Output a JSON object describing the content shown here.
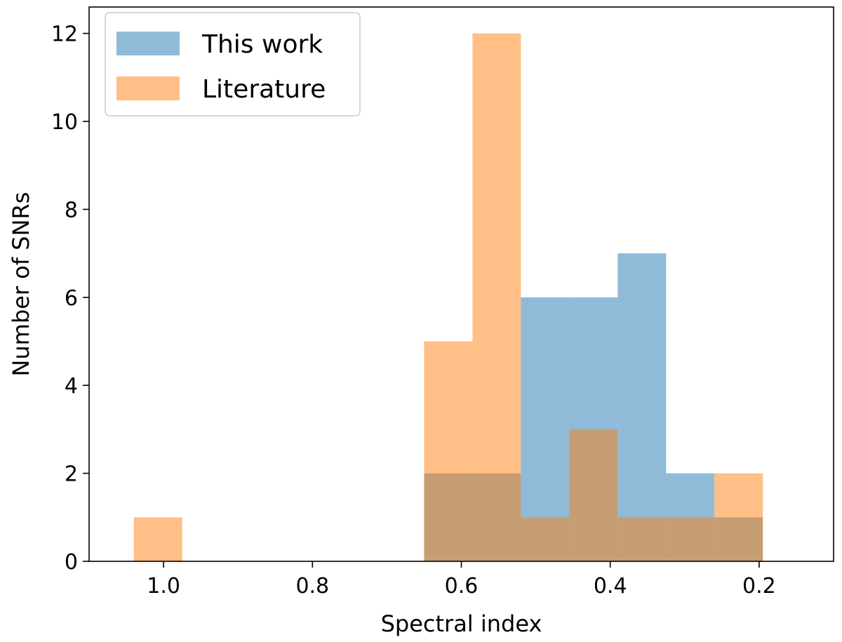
{
  "chart_data": {
    "type": "bar",
    "subtype": "overlaid-histogram",
    "xlabel": "Spectral index",
    "ylabel": "Number of SNRs",
    "x_axis_inverted": true,
    "xlim": [
      1.1,
      0.1
    ],
    "ylim": [
      0,
      12.6
    ],
    "xticks": [
      1.0,
      0.8,
      0.6,
      0.4,
      0.2
    ],
    "xtick_labels": [
      "1.0",
      "0.8",
      "0.6",
      "0.4",
      "0.2"
    ],
    "yticks": [
      0,
      2,
      4,
      6,
      8,
      10,
      12
    ],
    "ytick_labels": [
      "0",
      "2",
      "4",
      "6",
      "8",
      "10",
      "12"
    ],
    "bin_edges": [
      1.04,
      0.975,
      0.91,
      0.845,
      0.78,
      0.715,
      0.65,
      0.585,
      0.52,
      0.455,
      0.39,
      0.325,
      0.26,
      0.195
    ],
    "grid": false,
    "legend": {
      "position": "top-left"
    },
    "series": [
      {
        "name": "This work",
        "color": "#1f77b4",
        "opacity": 0.5,
        "values": [
          0,
          0,
          0,
          0,
          0,
          0,
          2,
          2,
          6,
          6,
          7,
          2,
          1
        ]
      },
      {
        "name": "Literature",
        "color": "#ff7f0e",
        "opacity": 0.5,
        "values": [
          1,
          0,
          0,
          0,
          0,
          0,
          5,
          12,
          1,
          3,
          1,
          1,
          2
        ]
      }
    ]
  }
}
